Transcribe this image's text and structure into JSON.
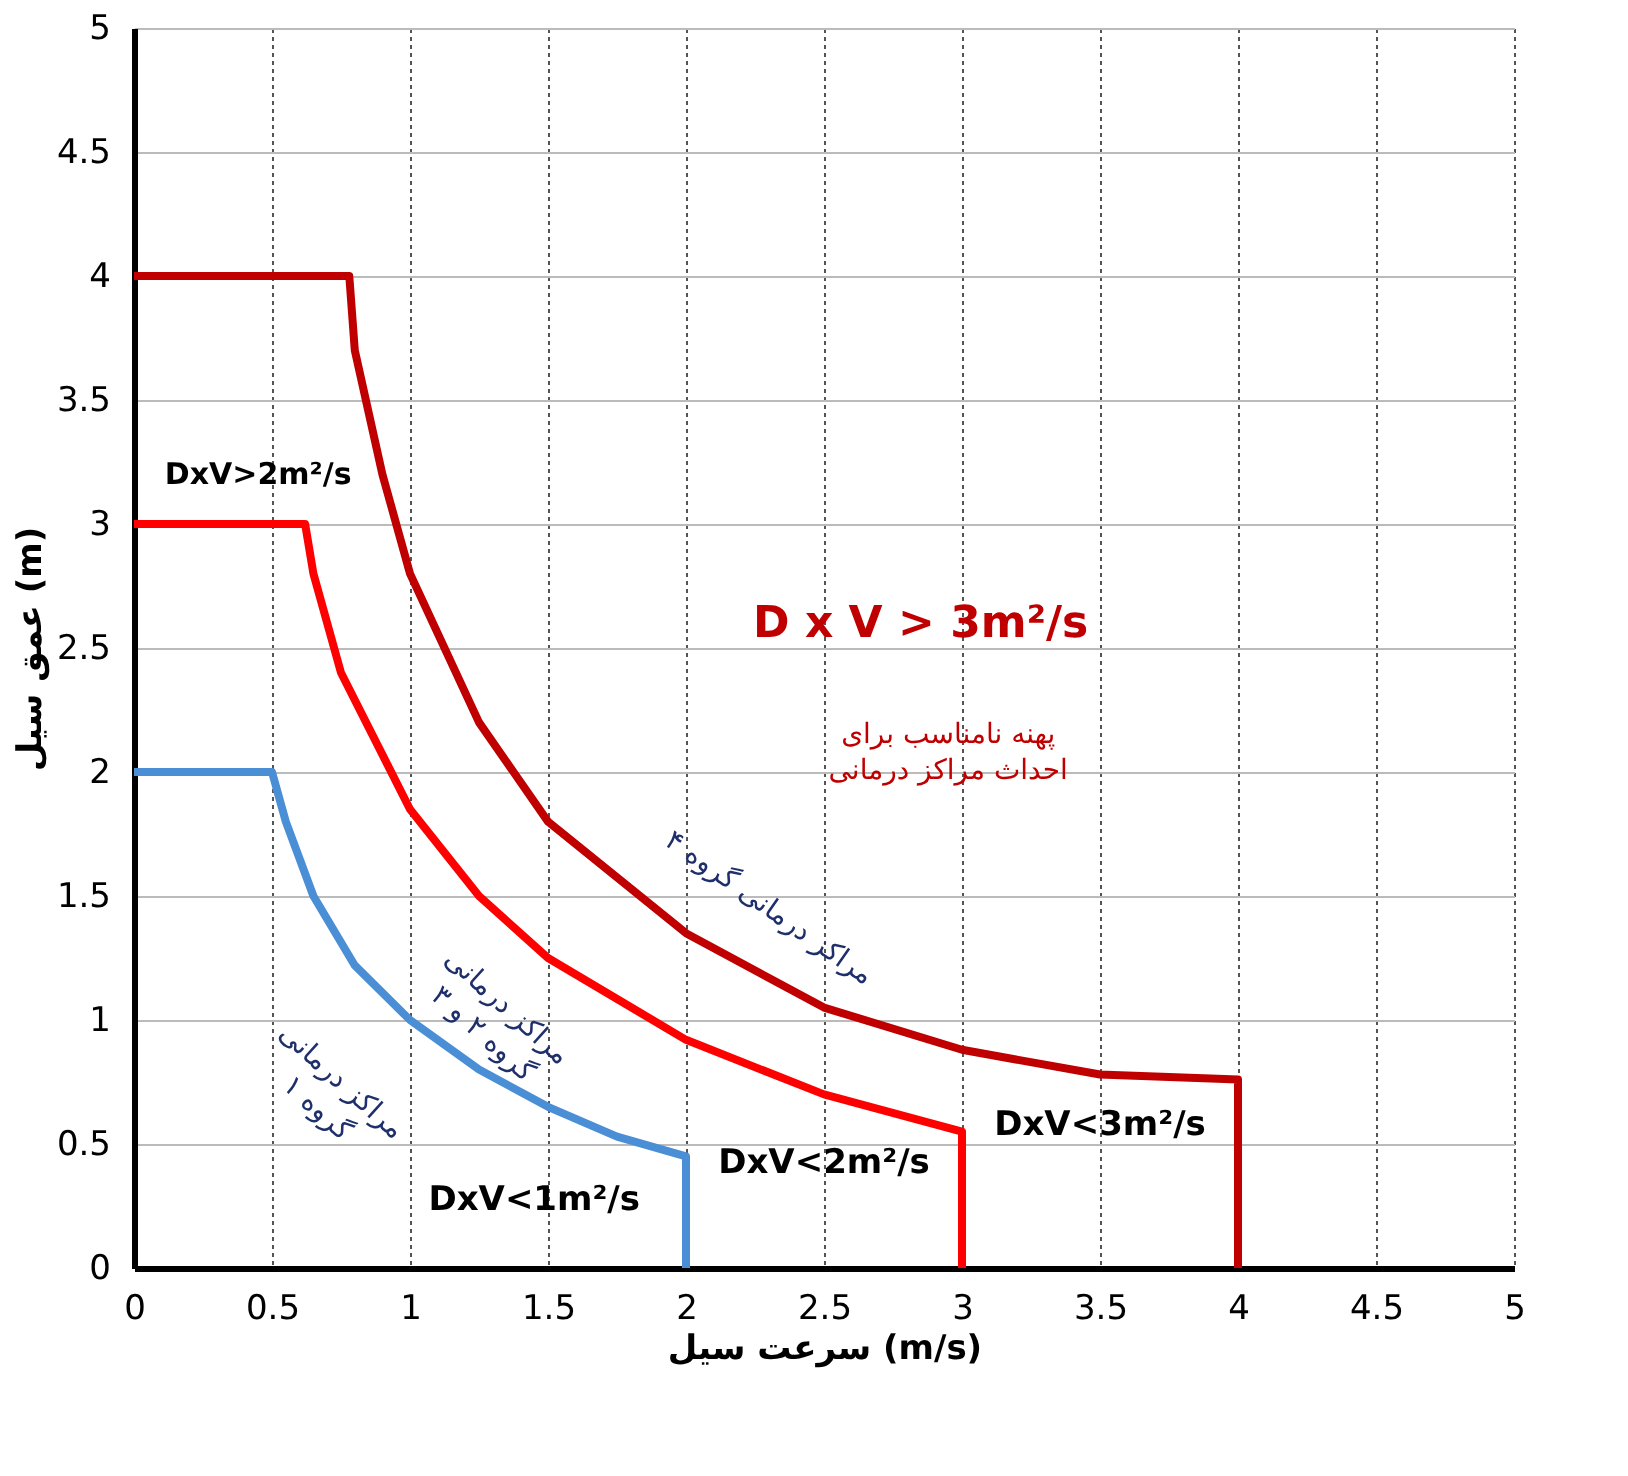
{
  "chart_data": {
    "type": "line",
    "xlabel": "سرعت سیل   (m/s)",
    "ylabel": "عمق سیل   (m)",
    "series": [
      {
        "color": "#4a8fd6",
        "x": [
          0,
          0.5,
          0.55,
          0.65,
          0.8,
          1,
          1.25,
          1.5,
          1.75,
          2,
          2
        ],
        "values": [
          2,
          2,
          1.8,
          1.5,
          1.22,
          1.0,
          0.8,
          0.65,
          0.53,
          0.45,
          0
        ]
      },
      {
        "color": "#ff0000",
        "x": [
          0,
          0.62,
          0.65,
          0.75,
          1,
          1.25,
          1.5,
          2,
          2.5,
          3,
          3
        ],
        "values": [
          3,
          3,
          2.8,
          2.4,
          1.85,
          1.5,
          1.25,
          0.92,
          0.7,
          0.55,
          0
        ]
      },
      {
        "color": "#c00000",
        "x": [
          0,
          0.78,
          0.8,
          0.9,
          1,
          1.25,
          1.5,
          2,
          2.5,
          3,
          3.5,
          4,
          4
        ],
        "values": [
          4,
          4,
          3.7,
          3.2,
          2.8,
          2.2,
          1.8,
          1.35,
          1.05,
          0.88,
          0.78,
          0.76,
          0
        ]
      }
    ],
    "annotations": [
      "DxV>2m²/s",
      "D x V > 3m²/s",
      "پهنه نامناسب برای\nاحداث مراکز درمانی",
      "مراکز درمانی گروه ۴",
      "مراکز درمانی\nگروه ۲ و ۳",
      "مراکز درمانی\nگروه ۱",
      "DxV<1m²/s",
      "DxV<2m²/s",
      "DxV<3m²/s"
    ],
    "xlim": [
      0,
      5
    ],
    "ylim": [
      0,
      5
    ],
    "xticks": [
      0,
      0.5,
      1,
      1.5,
      2,
      2.5,
      3,
      3.5,
      4,
      4.5,
      5
    ],
    "yticks": [
      0,
      0.5,
      1,
      1.5,
      2,
      2.5,
      3,
      3.5,
      4,
      4.5,
      5
    ],
    "grid": true,
    "legend": false,
    "marker": "none",
    "line_style": "solid"
  }
}
